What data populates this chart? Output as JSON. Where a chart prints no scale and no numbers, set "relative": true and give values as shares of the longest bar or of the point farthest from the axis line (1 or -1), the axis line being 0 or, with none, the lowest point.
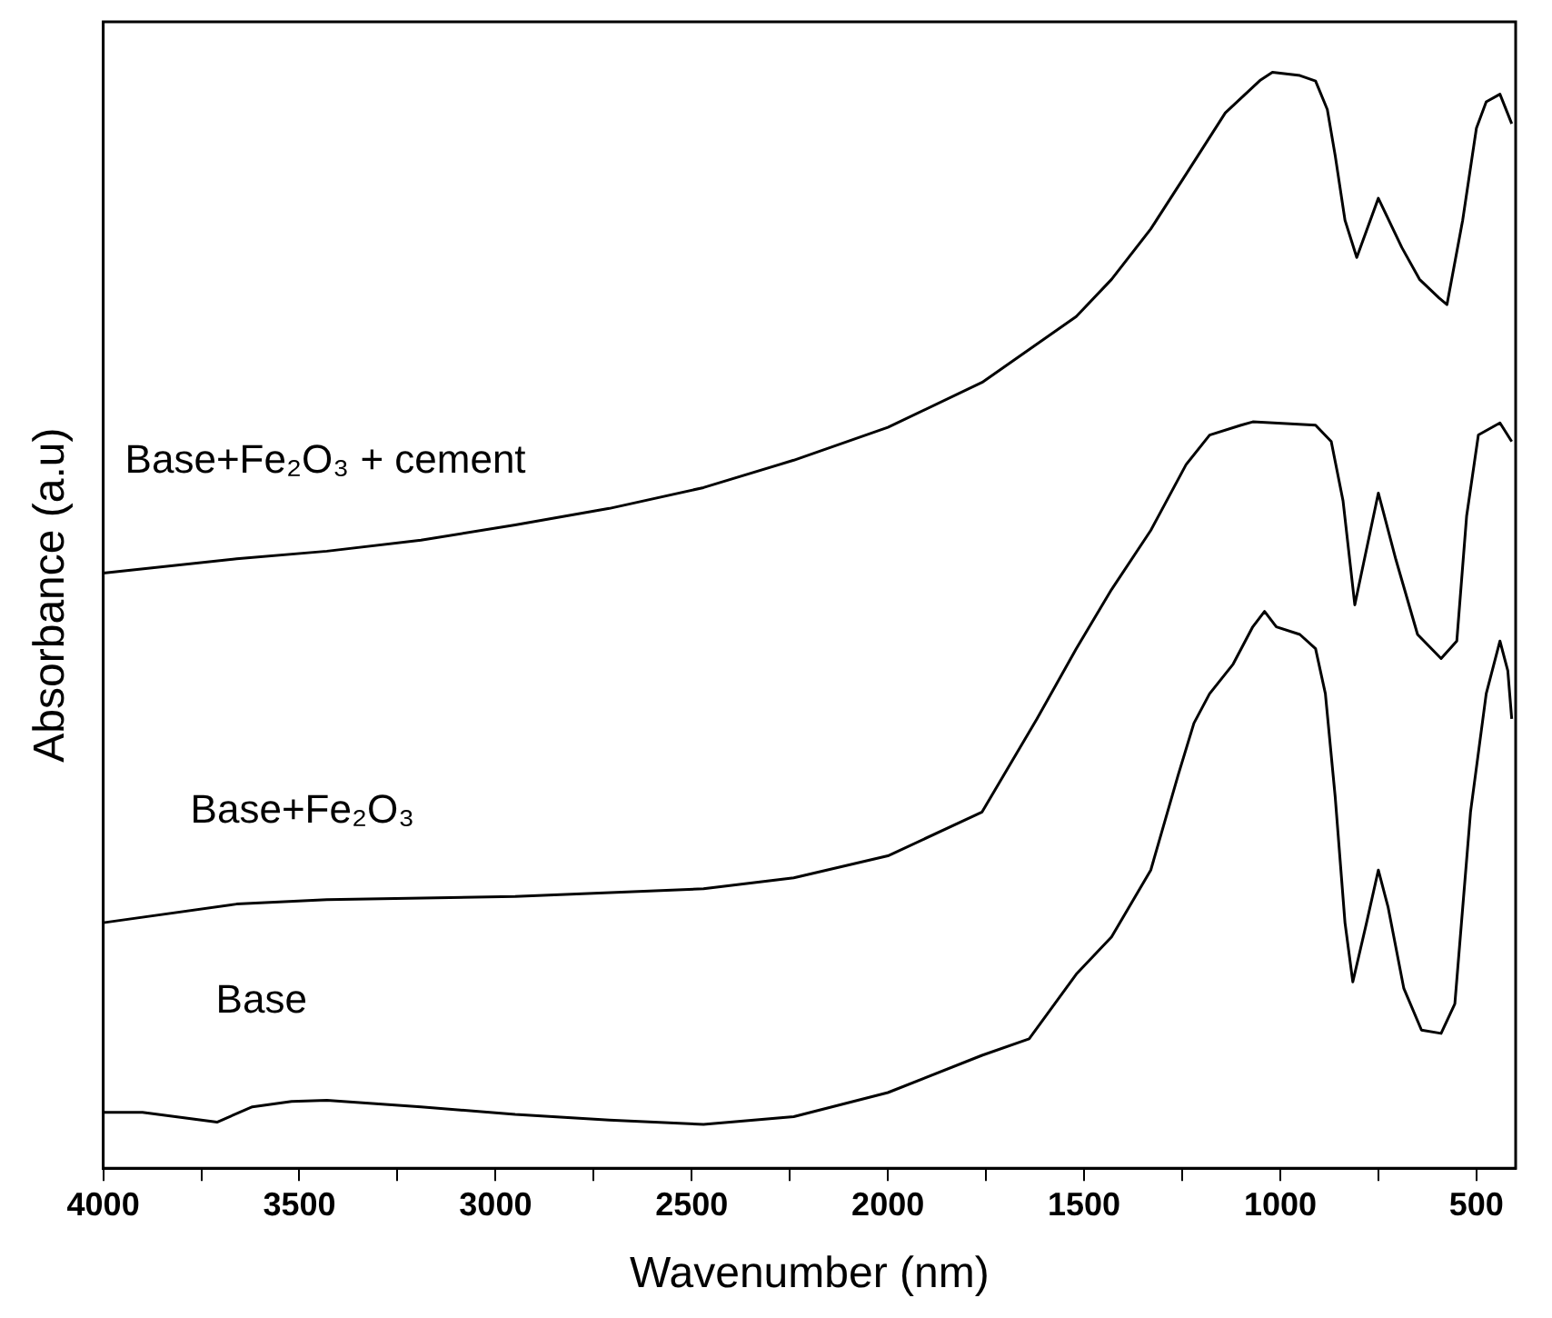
{
  "chart_data": {
    "type": "line",
    "relative": true,
    "xlabel": "Wavenumber (nm)",
    "ylabel": "Absorbance (a.u)",
    "xlim": [
      4000,
      400
    ],
    "xticks": [
      4000,
      {
        "value": 3750,
        "label": null
      },
      3500,
      {
        "value": 3250,
        "label": null
      },
      3000,
      {
        "value": 2750,
        "label": null
      },
      2500,
      {
        "value": 2250,
        "label": null
      },
      2000,
      {
        "value": 1750,
        "label": null
      },
      1500,
      {
        "value": 1250,
        "label": null
      },
      1000,
      {
        "value": 750,
        "label": null
      },
      500
    ],
    "legend": false,
    "grid": false,
    "marker": "none",
    "line_style": "solid",
    "tick_labels": "x",
    "series": [
      {
        "name": "Base+Fe₂O₃ + cement",
        "color": "#000000",
        "x": [
          4000,
          3660,
          3430,
          3190,
          2950,
          2710,
          2470,
          2240,
          2000,
          1760,
          1520,
          1430,
          1330,
          1240,
          1140,
          1050,
          1020,
          950,
          910,
          880,
          860,
          835,
          805,
          750,
          690,
          645,
          595,
          575,
          535,
          500,
          475,
          440,
          410
        ],
        "values": [
          0.543,
          0.556,
          0.563,
          0.573,
          0.587,
          0.602,
          0.621,
          0.646,
          0.676,
          0.717,
          0.777,
          0.811,
          0.857,
          0.907,
          0.963,
          0.993,
          1,
          0.997,
          0.992,
          0.966,
          0.924,
          0.865,
          0.831,
          0.885,
          0.84,
          0.811,
          0.794,
          0.788,
          0.865,
          0.949,
          0.973,
          0.98,
          0.953
        ]
      },
      {
        "name": "Base+Fe₂O₃",
        "color": "#000000",
        "x": [
          4000,
          3660,
          3430,
          2950,
          2470,
          2240,
          2000,
          1760,
          1620,
          1520,
          1430,
          1330,
          1240,
          1180,
          1100,
          1070,
          910,
          870,
          840,
          810,
          750,
          705,
          650,
          590,
          550,
          525,
          495,
          440,
          410
        ],
        "values": [
          0.224,
          0.241,
          0.245,
          0.248,
          0.255,
          0.265,
          0.285,
          0.325,
          0.41,
          0.474,
          0.528,
          0.582,
          0.642,
          0.669,
          0.678,
          0.681,
          0.678,
          0.663,
          0.609,
          0.514,
          0.616,
          0.555,
          0.487,
          0.465,
          0.481,
          0.595,
          0.669,
          0.68,
          0.663
        ]
      },
      {
        "name": "Base",
        "color": "#000000",
        "x": [
          4000,
          3900,
          3710,
          3620,
          3520,
          3430,
          3190,
          2950,
          2710,
          2470,
          2240,
          2000,
          1760,
          1640,
          1520,
          1430,
          1330,
          1260,
          1220,
          1180,
          1120,
          1070,
          1040,
          1010,
          950,
          910,
          885,
          860,
          835,
          815,
          780,
          750,
          725,
          685,
          640,
          590,
          555,
          515,
          475,
          440,
          420,
          410
        ],
        "values": [
          0.051,
          0.051,
          0.042,
          0.056,
          0.061,
          0.062,
          0.056,
          0.049,
          0.044,
          0.04,
          0.047,
          0.069,
          0.103,
          0.118,
          0.177,
          0.211,
          0.272,
          0.359,
          0.406,
          0.433,
          0.46,
          0.494,
          0.508,
          0.494,
          0.487,
          0.474,
          0.433,
          0.339,
          0.224,
          0.17,
          0.224,
          0.272,
          0.238,
          0.164,
          0.126,
          0.123,
          0.15,
          0.325,
          0.433,
          0.481,
          0.454,
          0.41
        ]
      }
    ]
  }
}
